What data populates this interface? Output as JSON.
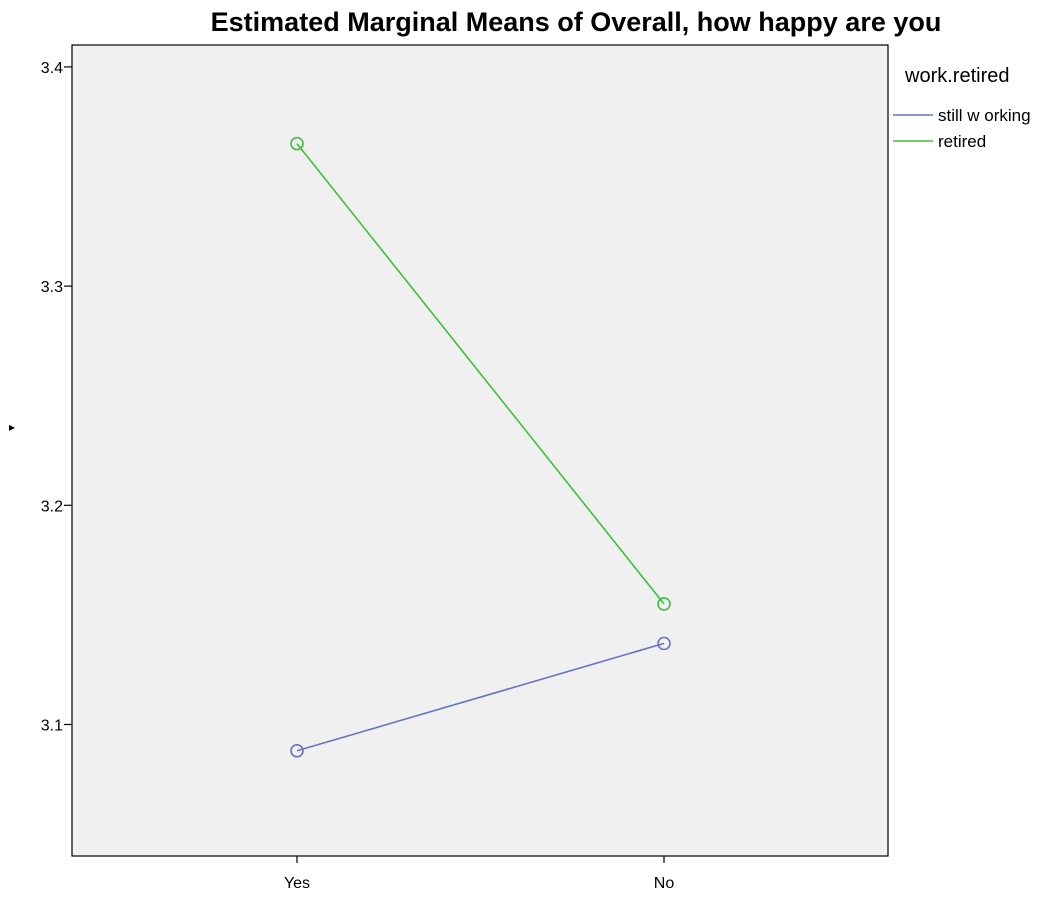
{
  "chart_data": {
    "type": "line",
    "title": "Estimated Marginal Means of Overall, how happy are you",
    "xlabel": "",
    "ylabel": "",
    "categories": [
      "Yes",
      "No"
    ],
    "ylim": [
      3.04,
      3.41
    ],
    "yticks": [
      3.1,
      3.2,
      3.3,
      3.4
    ],
    "ytick_labels": [
      "3.1",
      "3.2",
      "3.3",
      "3.4"
    ],
    "legend": {
      "title": "work.retired",
      "position": "right",
      "entries": [
        "still w orking",
        "retired"
      ]
    },
    "series": [
      {
        "name": "still w orking",
        "values": [
          3.088,
          3.137
        ],
        "color": "#6573c4",
        "marker": "open-circle"
      },
      {
        "name": "retired",
        "values": [
          3.365,
          3.155
        ],
        "color": "#3dbf3d",
        "marker": "open-circle"
      }
    ],
    "grid": false,
    "plot_background": "#f0f0f0"
  }
}
